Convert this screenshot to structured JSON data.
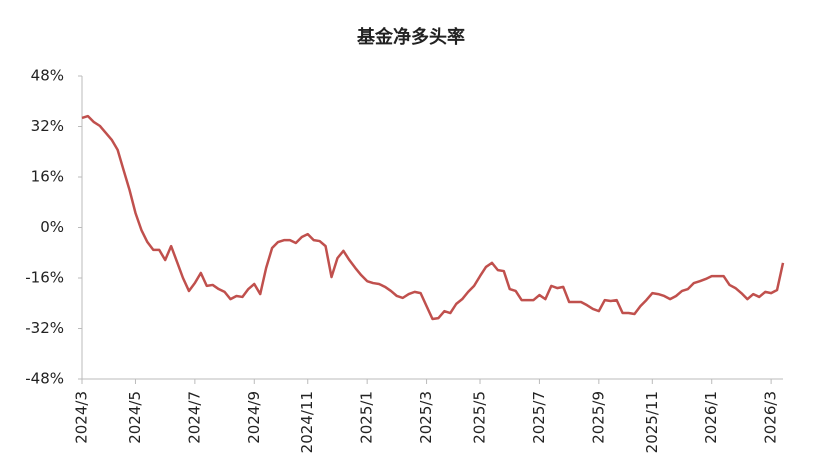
{
  "chart_data": {
    "type": "line",
    "title": "基金净多头率",
    "categories": [
      "2024/3",
      null,
      null,
      null,
      null,
      null,
      null,
      null,
      null,
      "2024/5",
      null,
      null,
      null,
      null,
      null,
      null,
      null,
      null,
      null,
      "2024/7",
      null,
      null,
      null,
      null,
      null,
      null,
      null,
      null,
      null,
      "2024/9",
      null,
      null,
      null,
      null,
      null,
      null,
      null,
      null,
      "2024/11",
      null,
      null,
      null,
      null,
      null,
      null,
      null,
      null,
      null,
      "2025/1",
      null,
      null,
      null,
      null,
      null,
      null,
      null,
      null,
      null,
      "2025/3",
      null,
      null,
      null,
      null,
      null,
      null,
      null,
      null,
      "2025/5",
      null,
      null,
      null,
      null,
      null,
      null,
      null,
      null,
      null,
      "2025/7",
      null,
      null,
      null,
      null,
      null,
      null,
      null,
      null,
      null,
      "2025/9",
      null,
      null,
      null,
      null,
      null,
      null,
      null,
      null,
      "2025/11",
      null,
      null,
      null,
      null,
      null,
      null,
      null,
      null,
      null,
      "2026/1",
      null,
      null,
      null,
      null,
      null,
      null,
      null,
      null,
      null,
      "2026/3",
      null,
      null
    ],
    "series": [
      {
        "name": "基金净多头率",
        "color": "#c0504d",
        "values": [
          34.7,
          35.3,
          33.4,
          32.2,
          30.0,
          27.8,
          24.6,
          18.2,
          11.9,
          4.6,
          -0.8,
          -4.6,
          -7.1,
          -7.1,
          -10.3,
          -5.9,
          -10.9,
          -16.0,
          -20.1,
          -17.6,
          -14.4,
          -18.5,
          -18.2,
          -19.5,
          -20.4,
          -22.7,
          -21.7,
          -22.0,
          -19.5,
          -17.9,
          -21.1,
          -12.8,
          -6.5,
          -4.6,
          -4.0,
          -4.0,
          -4.9,
          -3.0,
          -2.1,
          -4.0,
          -4.3,
          -5.9,
          -15.7,
          -9.7,
          -7.4,
          -10.3,
          -12.8,
          -15.1,
          -17.0,
          -17.6,
          -17.9,
          -18.8,
          -20.1,
          -21.7,
          -22.3,
          -21.1,
          -20.4,
          -20.8,
          -24.9,
          -29.0,
          -28.7,
          -26.5,
          -27.1,
          -24.2,
          -22.7,
          -20.4,
          -18.5,
          -15.4,
          -12.5,
          -11.2,
          -13.5,
          -13.8,
          -19.5,
          -20.1,
          -23.0,
          -23.0,
          -23.0,
          -21.4,
          -22.7,
          -18.5,
          -19.2,
          -18.8,
          -23.6,
          -23.6,
          -23.6,
          -24.6,
          -25.8,
          -26.5,
          -23.0,
          -23.3,
          -23.0,
          -27.1,
          -27.1,
          -27.4,
          -24.9,
          -23.0,
          -20.8,
          -21.1,
          -21.7,
          -22.7,
          -21.7,
          -20.1,
          -19.5,
          -17.6,
          -17.0,
          -16.3,
          -15.4,
          -15.4,
          -15.4,
          -18.2,
          -19.2,
          -20.8,
          -22.7,
          -21.1,
          -22.0,
          -20.4,
          -20.8,
          -19.8,
          -11.2
        ]
      }
    ],
    "ylim": [
      -48,
      48
    ],
    "yticks": [
      {
        "value": -48,
        "label": "-48%"
      },
      {
        "value": -32,
        "label": "-32%"
      },
      {
        "value": -16,
        "label": "-16%"
      },
      {
        "value": 0,
        "label": "0%"
      },
      {
        "value": 16,
        "label": "16%"
      },
      {
        "value": 32,
        "label": "32%"
      },
      {
        "value": 48,
        "label": "48%"
      }
    ]
  }
}
